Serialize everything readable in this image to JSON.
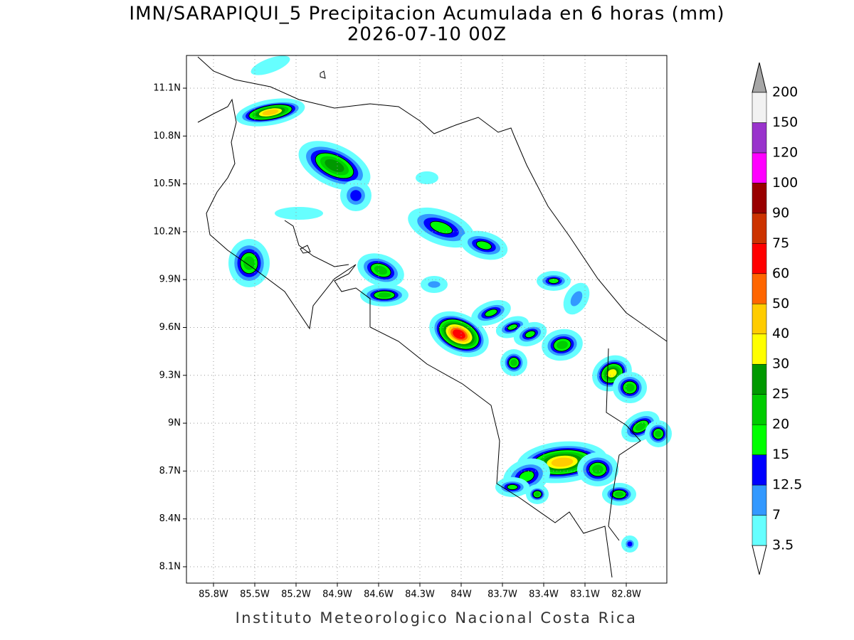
{
  "header": {
    "title": "IMN/SARAPIQUI_5 Precipitacion Acumulada en 6 horas (mm)",
    "subtitle": "2026-07-10 00Z"
  },
  "map": {
    "lon_labels": [
      "85.8W",
      "85.5W",
      "85.2W",
      "84.9W",
      "84.6W",
      "84.3W",
      "84W",
      "83.7W",
      "83.4W",
      "83.1W",
      "82.8W"
    ],
    "lat_labels": [
      "11.1N",
      "10.8N",
      "10.5N",
      "10.2N",
      "9.9N",
      "9.6N",
      "9.3N",
      "9N",
      "8.7N",
      "8.4N",
      "8.1N"
    ]
  },
  "colorbar": {
    "labels": [
      "3.5",
      "7",
      "12.5",
      "15",
      "20",
      "25",
      "30",
      "40",
      "50",
      "60",
      "75",
      "90",
      "100",
      "120",
      "150",
      "200"
    ],
    "colors": [
      "#66ffff",
      "#3399ff",
      "#0000ff",
      "#00ff00",
      "#00cc00",
      "#009900",
      "#ffff00",
      "#ffcc00",
      "#ff6600",
      "#ff0000",
      "#cc3300",
      "#990000",
      "#ff00ff",
      "#9933cc",
      "#f2f2f2"
    ],
    "under_color": "#ffffff",
    "over_color": "#a6a6a6"
  },
  "footer": "Instituto Meteorologico Nacional Costa Rica"
}
